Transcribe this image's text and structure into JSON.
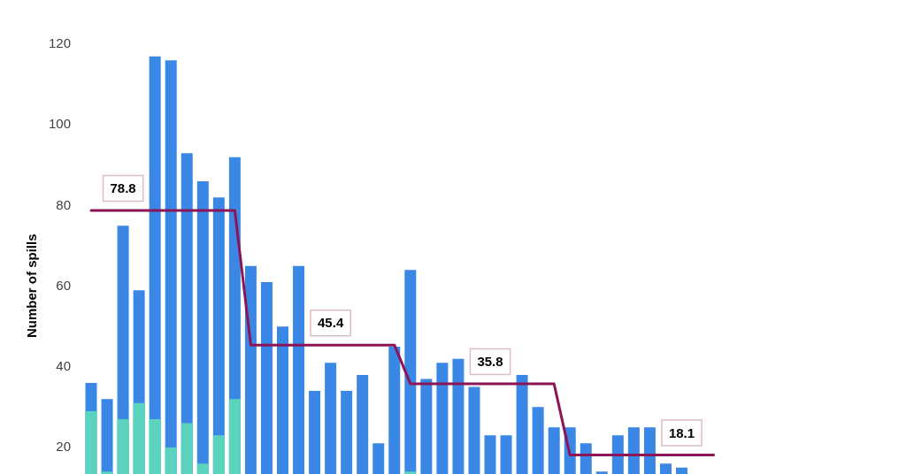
{
  "chart_data": {
    "type": "bar",
    "ylabel": "Number of spills",
    "categories": [
      null,
      null,
      null,
      null,
      null,
      null,
      null,
      null,
      null,
      null,
      null,
      null,
      null,
      null,
      null,
      null,
      null,
      null,
      null,
      null,
      null,
      null,
      null,
      null,
      null,
      null,
      null,
      null,
      null,
      null,
      null,
      null,
      null,
      null,
      null,
      null,
      null,
      null,
      null,
      null,
      null,
      null,
      null,
      null,
      null,
      null,
      null,
      null,
      null,
      null
    ],
    "series": [
      {
        "color": "#3a87e5",
        "values": [
          36,
          32,
          75,
          59,
          117,
          116,
          93,
          86,
          82,
          92,
          65,
          61,
          50,
          65,
          34,
          41,
          34,
          38,
          21,
          45,
          64,
          37,
          41,
          42,
          35,
          23,
          23,
          38,
          30,
          25,
          25,
          21,
          14,
          23,
          25,
          25,
          16,
          15,
          null,
          null,
          null,
          null,
          null,
          null,
          null,
          null,
          null,
          null,
          null,
          null
        ]
      },
      {
        "color": "#5cd4bd",
        "values": [
          29,
          14,
          27,
          31,
          27,
          20,
          26,
          16,
          23,
          32,
          null,
          null,
          null,
          null,
          null,
          null,
          null,
          null,
          null,
          null,
          14,
          null,
          null,
          null,
          null,
          null,
          null,
          null,
          null,
          null,
          null,
          null,
          null,
          null,
          null,
          null,
          null,
          null,
          null,
          null,
          null,
          null,
          null,
          null,
          null,
          null,
          null,
          null,
          null,
          null
        ]
      },
      {
        "type": "line",
        "color": "#8c1457",
        "values": [
          78.8,
          78.8,
          78.8,
          78.8,
          78.8,
          78.8,
          78.8,
          78.8,
          78.8,
          78.8,
          45.4,
          45.4,
          45.4,
          45.4,
          45.4,
          45.4,
          45.4,
          45.4,
          45.4,
          45.4,
          35.8,
          35.8,
          35.8,
          35.8,
          35.8,
          35.8,
          35.8,
          35.8,
          35.8,
          35.8,
          18.1,
          18.1,
          18.1,
          18.1,
          18.1,
          18.1,
          18.1,
          18.1,
          18.1,
          18.1,
          null,
          null,
          null,
          null,
          null,
          null,
          null,
          null,
          null,
          null
        ],
        "value_labels": [
          null,
          null,
          "78.8",
          null,
          null,
          null,
          null,
          null,
          null,
          null,
          null,
          null,
          null,
          null,
          null,
          "45.4",
          null,
          null,
          null,
          null,
          null,
          null,
          null,
          null,
          null,
          "35.8",
          null,
          null,
          null,
          null,
          null,
          null,
          null,
          null,
          null,
          null,
          null,
          "18.1",
          null,
          null,
          null,
          null,
          null,
          null,
          null,
          null,
          null,
          null,
          null,
          null
        ]
      }
    ],
    "ylim": [
      13.4,
      131
    ],
    "yticks": [
      20,
      40,
      60,
      80,
      100,
      120
    ],
    "tick_labels": "y"
  }
}
